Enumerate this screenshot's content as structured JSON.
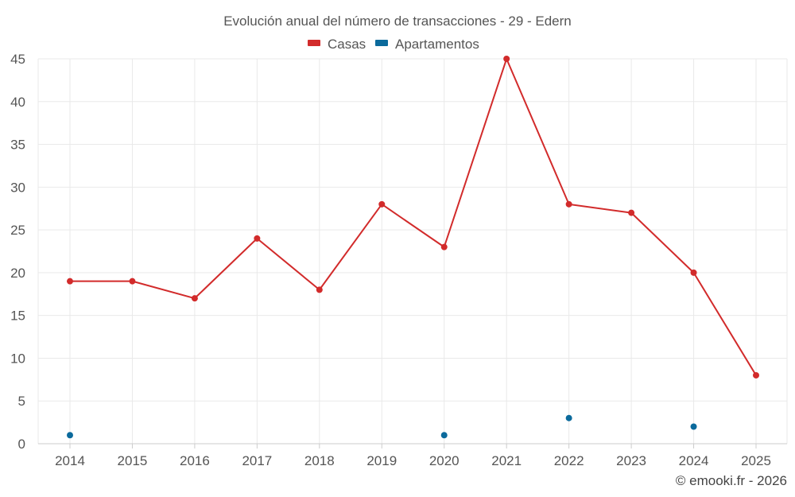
{
  "chart_data": {
    "type": "line",
    "title": "Evolución anual del número de transacciones - 29 - Edern",
    "categories": [
      "2014",
      "2015",
      "2016",
      "2017",
      "2018",
      "2019",
      "2020",
      "2021",
      "2022",
      "2023",
      "2024",
      "2025"
    ],
    "series": [
      {
        "name": "Casas",
        "color": "#d22b2b",
        "values": [
          19,
          19,
          17,
          24,
          18,
          28,
          23,
          45,
          28,
          27,
          20,
          8
        ]
      },
      {
        "name": "Apartamentos",
        "color": "#0b6a9c",
        "values": [
          1,
          null,
          null,
          null,
          null,
          null,
          1,
          null,
          3,
          null,
          2,
          null
        ]
      }
    ],
    "ylim": [
      0,
      45
    ],
    "yticks": [
      0,
      5,
      10,
      15,
      20,
      25,
      30,
      35,
      40,
      45
    ],
    "grid": true,
    "legend": "top-center",
    "xlabel": "",
    "ylabel": ""
  },
  "credit": "© emooki.fr - 2026"
}
